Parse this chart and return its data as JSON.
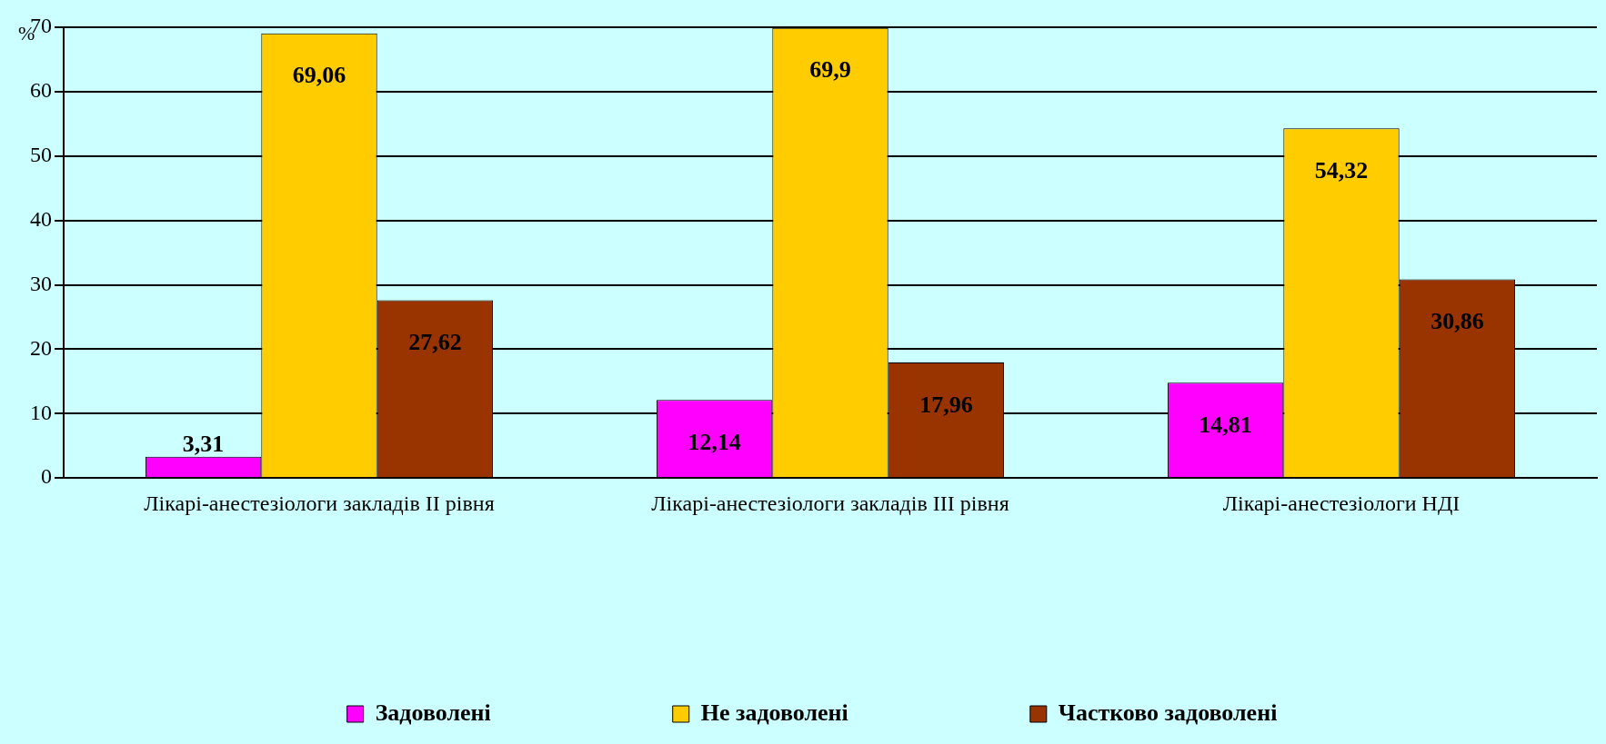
{
  "chart_data": {
    "type": "bar",
    "ylabel": "%",
    "categories": [
      "Лікарі-анестезіологи закладів ІІ рівня",
      "Лікарі-анестезіологи закладів ІІІ рівня",
      "Лікарі-анестезіологи НДІ"
    ],
    "series": [
      {
        "name": "Задоволені",
        "color": "#ff00ff",
        "values": [
          3.31,
          12.14,
          14.81
        ],
        "value_labels": [
          "3,31",
          "12,14",
          "14,81"
        ]
      },
      {
        "name": "Не задоволені",
        "color": "#ffcc00",
        "values": [
          69.06,
          69.9,
          54.32
        ],
        "value_labels": [
          "69,06",
          "69,9",
          "54,32"
        ]
      },
      {
        "name": "Частково задоволені",
        "color": "#993300",
        "values": [
          27.62,
          17.96,
          30.86
        ],
        "value_labels": [
          "27,62",
          "17,96",
          "30,86"
        ]
      }
    ],
    "ylim": [
      0,
      70
    ],
    "yticks": [
      0,
      10,
      20,
      30,
      40,
      50,
      60,
      70
    ],
    "grid": "y",
    "legend": "bottom"
  }
}
